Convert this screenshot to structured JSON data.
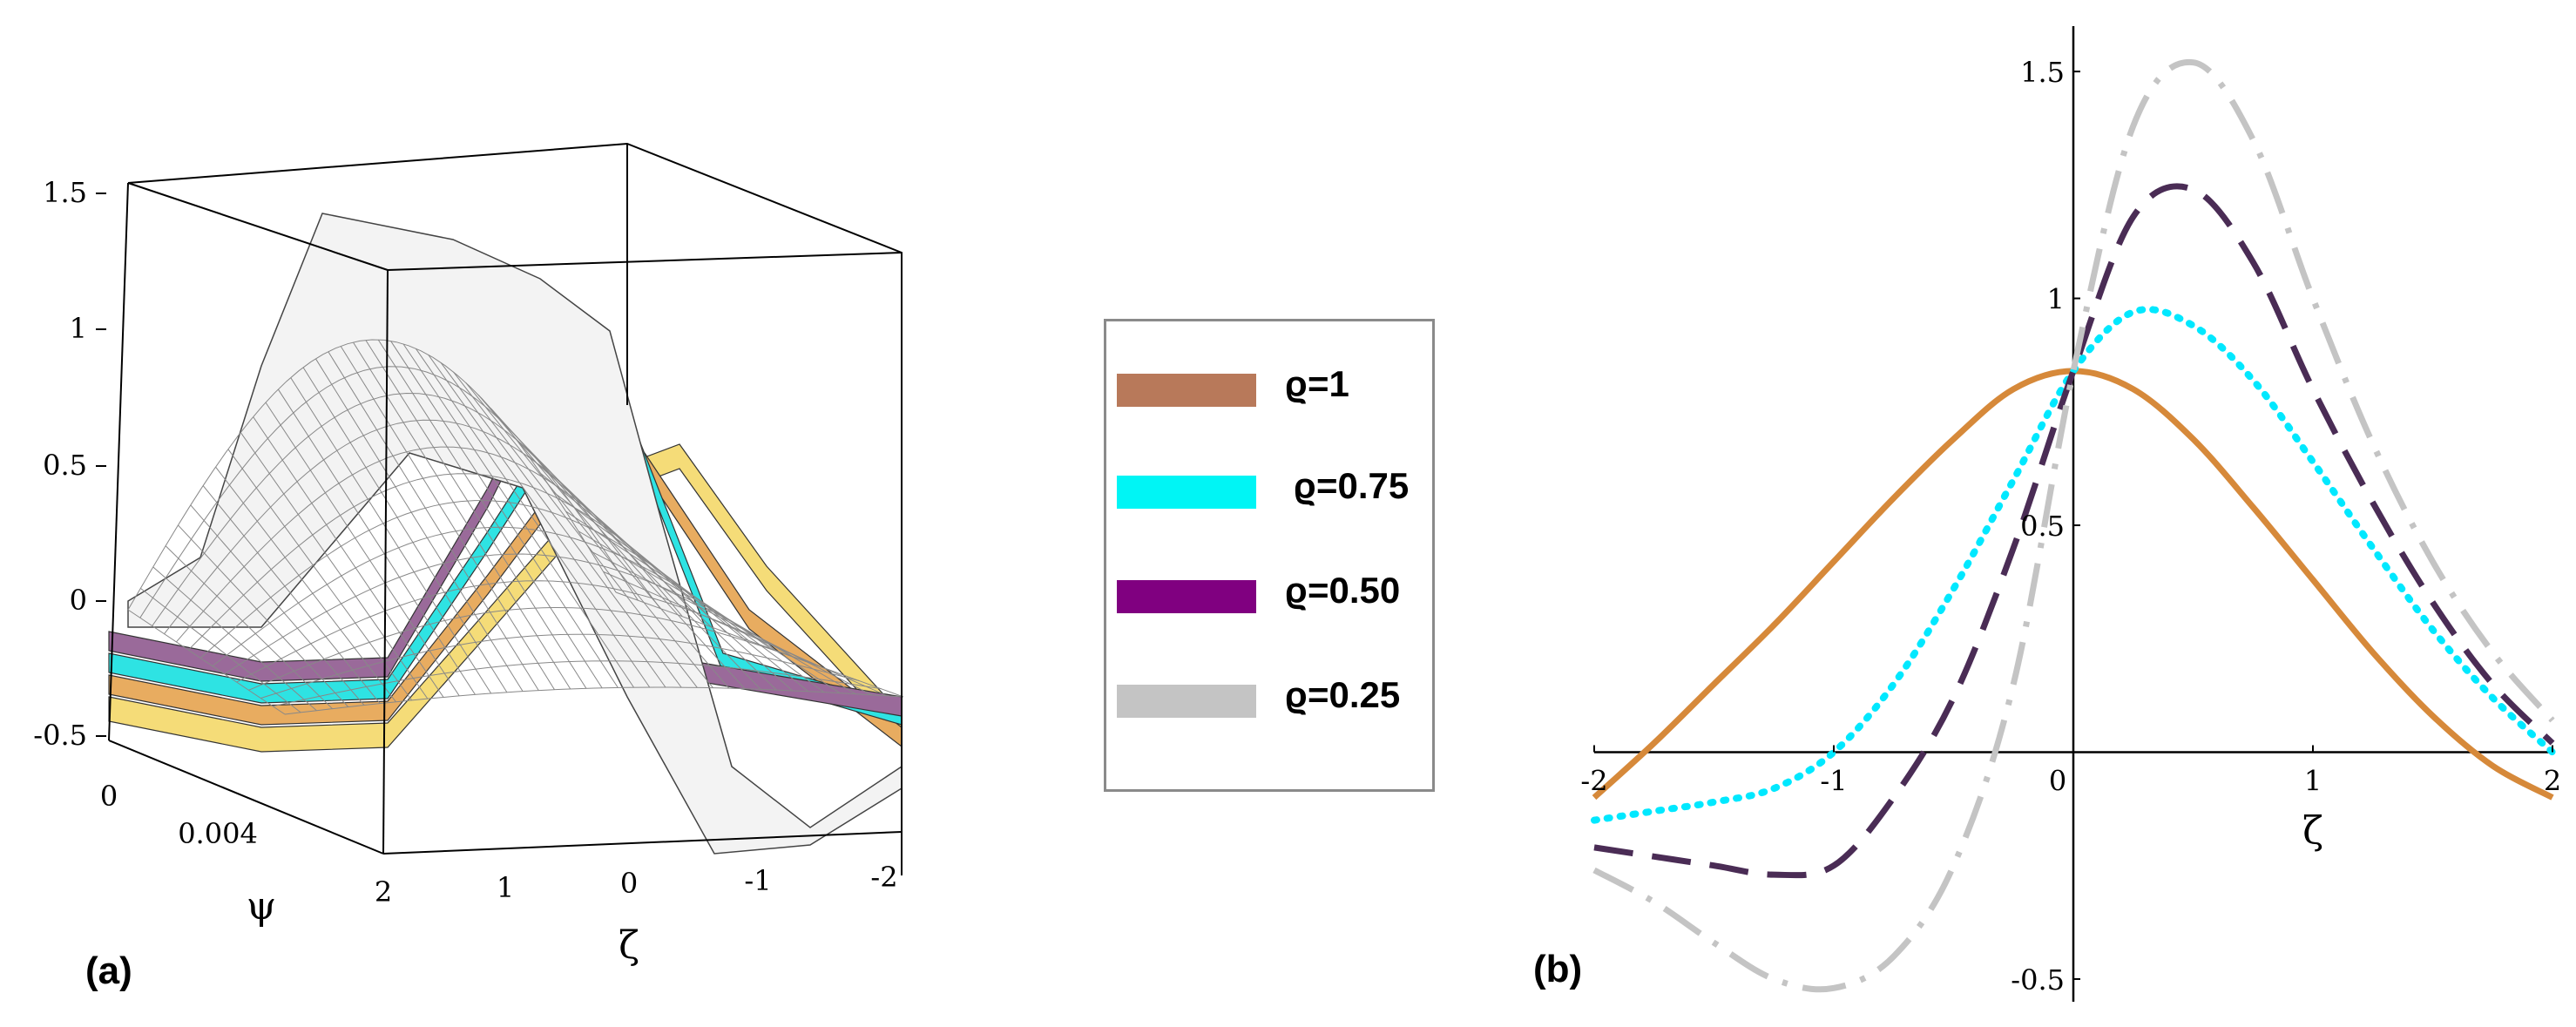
{
  "panels": {
    "a_label": "(a)",
    "b_label": "(b)"
  },
  "legend": {
    "items": [
      {
        "label": "ϱ=1",
        "color": "#b8795a"
      },
      {
        "label": "ϱ=0.75",
        "color": "#00f5f5"
      },
      {
        "label": "ϱ=0.50",
        "color": "#800080"
      },
      {
        "label": "ϱ=0.25",
        "color": "#c4c4c4"
      }
    ]
  },
  "chart_data": [
    {
      "type": "surface3d",
      "panel": "(a)",
      "title": "",
      "z_ticks": [
        "1.5",
        "1",
        "0.5",
        "0",
        "-0.5"
      ],
      "psi_ticks": [
        "0",
        "0.004"
      ],
      "zeta_ticks": [
        "2",
        "1",
        "0",
        "-1",
        "-2"
      ],
      "psi_label": "ψ",
      "zeta_label": "ζ",
      "series_colors": [
        "#f5dc78",
        "#e8ac60",
        "#2ee3e3",
        "#9a6a9a",
        "#f3f3f3"
      ],
      "series": [
        {
          "name": "ϱ=1",
          "color": "#e8ac60"
        },
        {
          "name": "ϱ=0.75",
          "color": "#2ee3e3"
        },
        {
          "name": "ϱ=0.50",
          "color": "#9a6a9a"
        },
        {
          "name": "ϱ=0.25",
          "color": "#f3f3f3"
        }
      ]
    },
    {
      "type": "line",
      "panel": "(b)",
      "title": "",
      "xlabel": "ζ",
      "ylabel": "",
      "xlim": [
        -2,
        2
      ],
      "ylim": [
        -0.55,
        1.6
      ],
      "x_ticks": [
        "-2",
        "-1",
        "0",
        "1",
        "2"
      ],
      "y_ticks": [
        "1.5",
        "1",
        "0.5",
        "-0.5"
      ],
      "x_tick_values": [
        -2,
        -1,
        0,
        1,
        2
      ],
      "y_tick_values": [
        1.5,
        1,
        0.5,
        -0.5
      ],
      "grid": false,
      "series": [
        {
          "name": "ϱ=1",
          "style": "solid",
          "color": "#d6893a",
          "x": [
            -2,
            -1.75,
            -1.5,
            -1.25,
            -1,
            -0.75,
            -0.5,
            -0.25,
            0,
            0.25,
            0.5,
            0.75,
            1,
            1.25,
            1.5,
            1.75,
            2
          ],
          "y": [
            -0.1,
            0.02,
            0.15,
            0.28,
            0.42,
            0.56,
            0.69,
            0.8,
            0.84,
            0.8,
            0.69,
            0.54,
            0.38,
            0.22,
            0.08,
            -0.03,
            -0.1
          ]
        },
        {
          "name": "ϱ=0.75",
          "style": "dotted",
          "color": "#00e8ff",
          "x": [
            -2,
            -1.75,
            -1.5,
            -1.25,
            -1,
            -0.75,
            -0.5,
            -0.25,
            0,
            0.25,
            0.5,
            0.75,
            1,
            1.25,
            1.5,
            1.75,
            2
          ],
          "y": [
            -0.15,
            -0.13,
            -0.11,
            -0.08,
            0.0,
            0.15,
            0.36,
            0.6,
            0.84,
            0.97,
            0.94,
            0.82,
            0.64,
            0.45,
            0.27,
            0.12,
            0.0
          ]
        },
        {
          "name": "ϱ=0.50",
          "style": "dashed",
          "color": "#4a2c55",
          "x": [
            -2,
            -1.75,
            -1.5,
            -1.25,
            -1,
            -0.75,
            -0.5,
            -0.25,
            0,
            0.25,
            0.5,
            0.75,
            1,
            1.25,
            1.5,
            1.75,
            2
          ],
          "y": [
            -0.21,
            -0.23,
            -0.25,
            -0.27,
            -0.25,
            -0.1,
            0.12,
            0.45,
            0.84,
            1.18,
            1.24,
            1.08,
            0.8,
            0.55,
            0.33,
            0.15,
            0.02
          ]
        },
        {
          "name": "ϱ=0.25",
          "style": "dashdot",
          "color": "#c4c4c4",
          "x": [
            -2,
            -1.75,
            -1.5,
            -1.25,
            -1,
            -0.75,
            -0.5,
            -0.25,
            0,
            0.25,
            0.5,
            0.75,
            1,
            1.25,
            1.5,
            1.75,
            2
          ],
          "y": [
            -0.26,
            -0.33,
            -0.42,
            -0.5,
            -0.52,
            -0.45,
            -0.25,
            0.15,
            0.84,
            1.38,
            1.52,
            1.35,
            1.0,
            0.68,
            0.42,
            0.22,
            0.07
          ]
        }
      ]
    }
  ]
}
